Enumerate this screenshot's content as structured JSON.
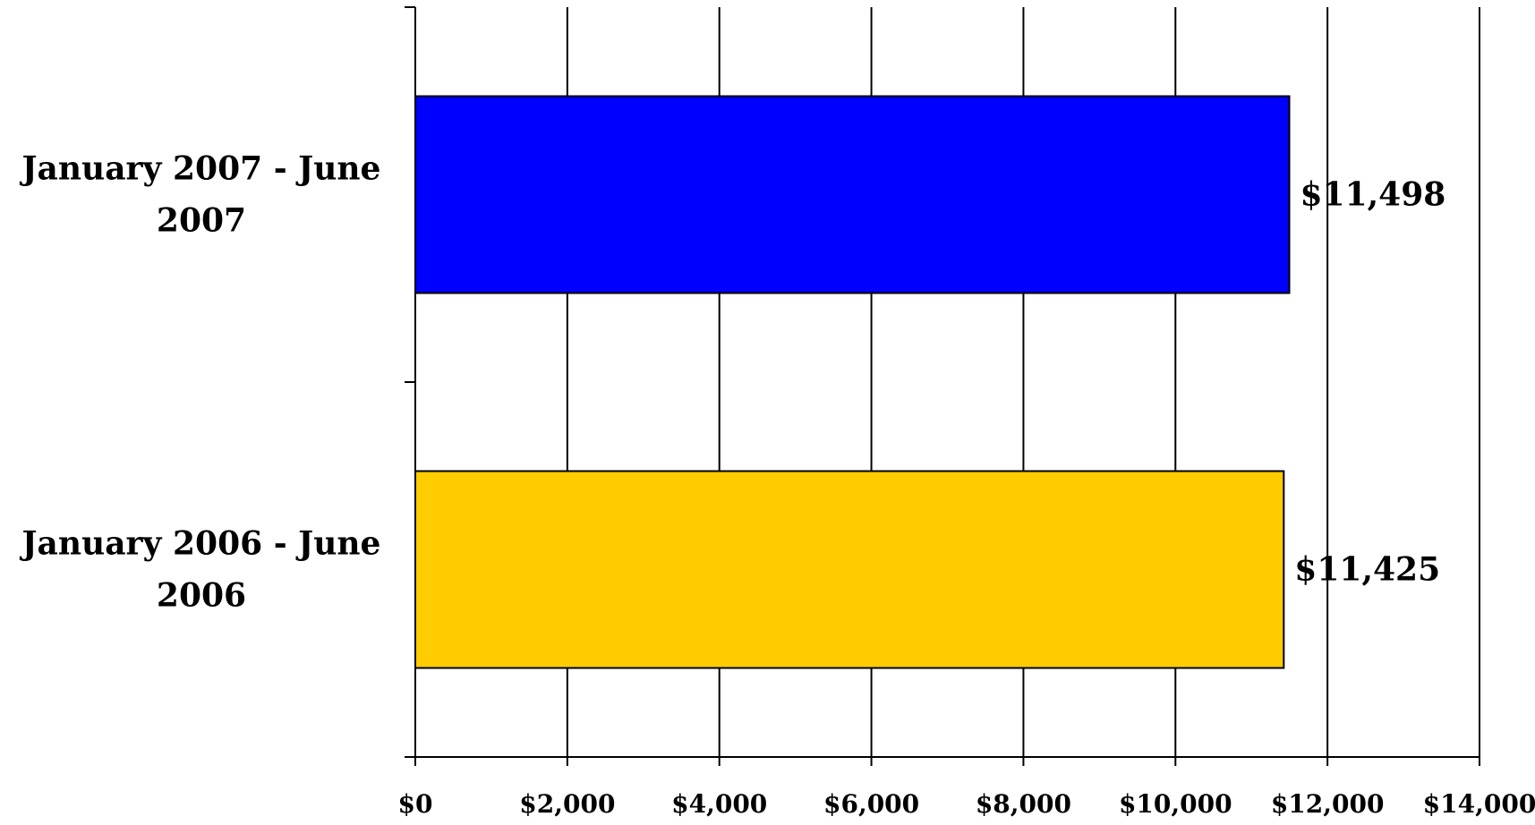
{
  "chart_data": {
    "type": "bar",
    "orientation": "horizontal",
    "categories": [
      [
        "January 2007 - June",
        "2007"
      ],
      [
        "January 2006 - June",
        "2006"
      ]
    ],
    "values": [
      11498,
      11425
    ],
    "data_labels": [
      "$11,498",
      "$11,425"
    ],
    "bar_colors": [
      "#0000FF",
      "#FFCC00"
    ],
    "xlim": [
      0,
      14000
    ],
    "x_ticks": [
      0,
      2000,
      4000,
      6000,
      8000,
      10000,
      12000,
      14000
    ],
    "x_tick_labels": [
      "$0",
      "$2,000",
      "$4,000",
      "$6,000",
      "$8,000",
      "$10,000",
      "$12,000",
      "$14,000"
    ],
    "grid": true,
    "legend": "none",
    "title": "",
    "xlabel": "",
    "ylabel": ""
  }
}
